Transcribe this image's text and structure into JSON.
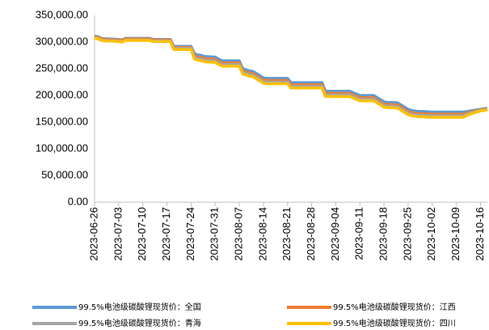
{
  "chart_data": {
    "type": "line",
    "x": [
      "2023-06-26",
      "2023-06-27",
      "2023-06-28",
      "2023-06-29",
      "2023-06-30",
      "2023-07-03",
      "2023-07-04",
      "2023-07-05",
      "2023-07-06",
      "2023-07-07",
      "2023-07-10",
      "2023-07-11",
      "2023-07-12",
      "2023-07-13",
      "2023-07-14",
      "2023-07-17",
      "2023-07-18",
      "2023-07-19",
      "2023-07-20",
      "2023-07-21",
      "2023-07-24",
      "2023-07-25",
      "2023-07-26",
      "2023-07-27",
      "2023-07-28",
      "2023-07-31",
      "2023-08-01",
      "2023-08-02",
      "2023-08-03",
      "2023-08-04",
      "2023-08-07",
      "2023-08-08",
      "2023-08-09",
      "2023-08-10",
      "2023-08-11",
      "2023-08-14",
      "2023-08-15",
      "2023-08-16",
      "2023-08-17",
      "2023-08-18",
      "2023-08-21",
      "2023-08-22",
      "2023-08-23",
      "2023-08-24",
      "2023-08-25",
      "2023-08-28",
      "2023-08-29",
      "2023-08-30",
      "2023-08-31",
      "2023-09-01",
      "2023-09-04",
      "2023-09-05",
      "2023-09-06",
      "2023-09-07",
      "2023-09-08",
      "2023-09-11",
      "2023-09-12",
      "2023-09-13",
      "2023-09-14",
      "2023-09-15",
      "2023-09-18",
      "2023-09-19",
      "2023-09-20",
      "2023-09-21",
      "2023-09-22",
      "2023-09-25",
      "2023-09-26",
      "2023-09-27",
      "2023-09-28",
      "2023-09-29",
      "2023-10-02",
      "2023-10-03",
      "2023-10-04",
      "2023-10-05",
      "2023-10-06",
      "2023-10-09",
      "2023-10-10",
      "2023-10-11",
      "2023-10-12",
      "2023-10-13",
      "2023-10-16",
      "2023-10-17",
      "2023-10-18"
    ],
    "series": [
      {
        "name": "99.5%电池级碳酸锂现货价：全国",
        "color": "#5b9bd5",
        "values": [
          311000,
          310000,
          307000,
          306000,
          306000,
          305000,
          304000,
          307000,
          307000,
          307000,
          307000,
          307000,
          307000,
          305000,
          305000,
          305000,
          305000,
          292000,
          292000,
          292000,
          292000,
          278000,
          276000,
          275000,
          273000,
          272000,
          268000,
          265000,
          265000,
          265000,
          265000,
          250000,
          248000,
          246000,
          245000,
          233000,
          232000,
          232000,
          232000,
          232000,
          232000,
          224000,
          224000,
          224000,
          224000,
          224000,
          224000,
          224000,
          224000,
          208000,
          208000,
          208000,
          208000,
          208000,
          208000,
          200000,
          200000,
          200000,
          200000,
          200000,
          188000,
          187000,
          187000,
          187000,
          186000,
          174000,
          172000,
          171000,
          170000,
          170000,
          169000,
          169000,
          169000,
          169000,
          169000,
          169000,
          169000,
          169000,
          170000,
          171000,
          174000,
          175000,
          176000
        ]
      },
      {
        "name": "99.5%电池级碳酸锂现货价：江西",
        "color": "#ed7d31",
        "values": [
          310000,
          309000,
          306000,
          305000,
          305000,
          304000,
          303000,
          306000,
          306000,
          306000,
          306000,
          306000,
          306000,
          304000,
          304000,
          304000,
          304000,
          290000,
          290000,
          290000,
          290000,
          274000,
          272000,
          271000,
          269000,
          268000,
          264000,
          261000,
          261000,
          261000,
          261000,
          246000,
          244000,
          242000,
          241000,
          229000,
          228000,
          228000,
          228000,
          228000,
          228000,
          220000,
          220000,
          220000,
          220000,
          220000,
          220000,
          220000,
          220000,
          204000,
          204000,
          204000,
          204000,
          204000,
          204000,
          196000,
          196000,
          196000,
          196000,
          196000,
          184000,
          183000,
          183000,
          183000,
          182000,
          170000,
          168000,
          167000,
          166000,
          166000,
          165000,
          165000,
          165000,
          165000,
          165000,
          165000,
          165000,
          165000,
          167000,
          169000,
          173000,
          174000,
          175000
        ]
      },
      {
        "name": "99.5%电池级碳酸锂现货价：青海",
        "color": "#a5a5a5",
        "values": [
          308000,
          307000,
          304000,
          303000,
          303000,
          302000,
          301000,
          304000,
          304000,
          304000,
          304000,
          304000,
          304000,
          302000,
          302000,
          302000,
          302000,
          288000,
          288000,
          288000,
          288000,
          271000,
          269000,
          268000,
          266000,
          265000,
          261000,
          258000,
          258000,
          258000,
          258000,
          243000,
          241000,
          239000,
          238000,
          226000,
          225000,
          225000,
          225000,
          225000,
          225000,
          217000,
          217000,
          217000,
          217000,
          217000,
          217000,
          217000,
          217000,
          201000,
          201000,
          201000,
          201000,
          201000,
          201000,
          193000,
          193000,
          193000,
          193000,
          193000,
          181000,
          180000,
          180000,
          180000,
          179000,
          167000,
          165000,
          164000,
          163000,
          163000,
          162000,
          162000,
          162000,
          162000,
          162000,
          162000,
          162000,
          162000,
          165000,
          167000,
          172000,
          173000,
          174000
        ]
      },
      {
        "name": "99.5%电池级碳酸锂现货价：四川",
        "color": "#ffc000",
        "values": [
          307000,
          306000,
          303000,
          302000,
          302000,
          301000,
          300000,
          303000,
          303000,
          303000,
          303000,
          303000,
          303000,
          301000,
          301000,
          301000,
          301000,
          286000,
          286000,
          286000,
          286000,
          268000,
          266000,
          265000,
          263000,
          262000,
          258000,
          255000,
          255000,
          255000,
          255000,
          240000,
          238000,
          236000,
          235000,
          223000,
          222000,
          222000,
          222000,
          222000,
          222000,
          214000,
          214000,
          214000,
          214000,
          214000,
          214000,
          214000,
          214000,
          198000,
          198000,
          198000,
          198000,
          198000,
          198000,
          190000,
          190000,
          190000,
          190000,
          190000,
          178000,
          177000,
          177000,
          177000,
          176000,
          164000,
          162000,
          161000,
          160000,
          160000,
          159000,
          159000,
          159000,
          159000,
          159000,
          159000,
          159000,
          159000,
          162000,
          165000,
          171000,
          172000,
          173000
        ]
      }
    ],
    "xlim": [
      "2023-06-26",
      "2023-10-18"
    ],
    "xticks": [
      "2023-06-26",
      "2023-07-03",
      "2023-07-10",
      "2023-07-17",
      "2023-07-24",
      "2023-07-31",
      "2023-08-07",
      "2023-08-14",
      "2023-08-21",
      "2023-08-28",
      "2023-09-04",
      "2023-09-11",
      "2023-09-18",
      "2023-09-25",
      "2023-10-02",
      "2023-10-09",
      "2023-10-16"
    ],
    "ylim": [
      0,
      350000
    ],
    "yticks": [
      {
        "value": 0,
        "label": "0.00"
      },
      {
        "value": 50000,
        "label": "50,000.00"
      },
      {
        "value": 100000,
        "label": "100,000.00"
      },
      {
        "value": 150000,
        "label": "150,000.00"
      },
      {
        "value": 200000,
        "label": "200,000.00"
      },
      {
        "value": 250000,
        "label": "250,000.00"
      },
      {
        "value": 300000,
        "label": "300,000.00"
      },
      {
        "value": 350000,
        "label": "350,000.00"
      }
    ],
    "grid": false
  }
}
